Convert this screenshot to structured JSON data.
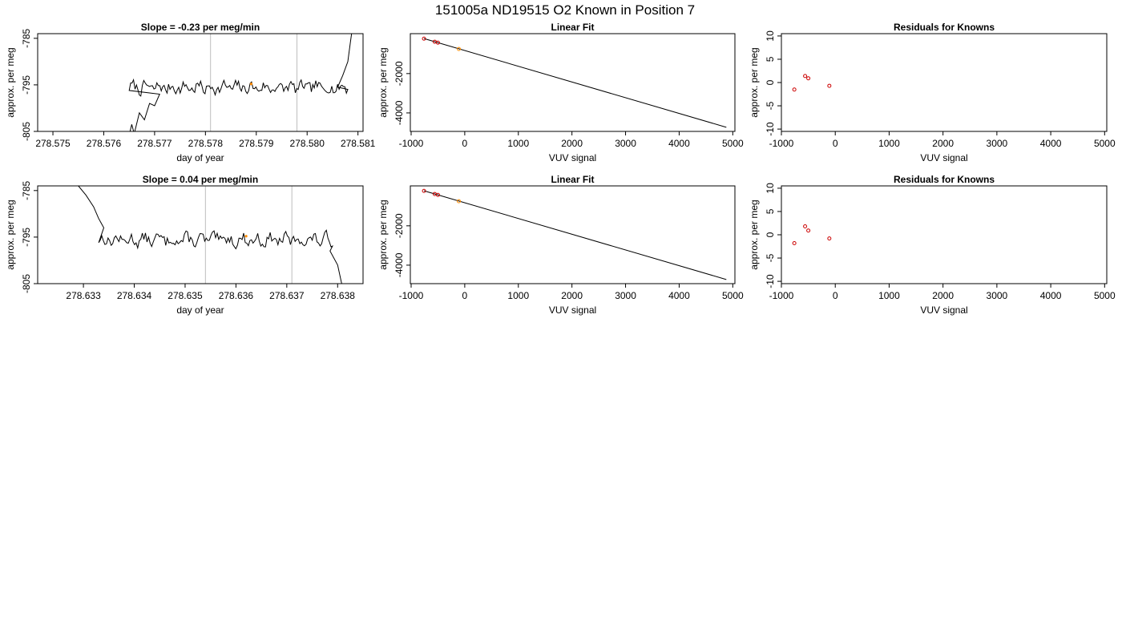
{
  "figure": {
    "title": "151005a     ND19515   O2 Known in Position  7"
  },
  "colors": {
    "trace": "#000000",
    "marker_orange": "#ff8c00",
    "marker_red": "#cc0000",
    "vline": "#bebebe",
    "fit_line": "#000000"
  },
  "chart_data": [
    {
      "type": "line",
      "title": "Slope =  -0.23  per meg/min",
      "xlabel": "day of year",
      "ylabel": "approx. per meg",
      "xlim": [
        278.5747,
        278.5811
      ],
      "ylim": [
        -805,
        -784
      ],
      "x_ticks": [
        278.575,
        278.576,
        278.577,
        278.578,
        278.579,
        278.58,
        278.581
      ],
      "x_tick_labels": [
        "278.575",
        "278.576",
        "278.577",
        "278.578",
        "278.579",
        "278.580",
        "278.581"
      ],
      "y_ticks": [
        -805,
        -795,
        -785
      ],
      "y_tick_labels": [
        "-805",
        "-795",
        "-785"
      ],
      "vlines": [
        278.5781,
        278.5798
      ],
      "trace": {
        "x_start": 278.5765,
        "x_end": 278.5808,
        "head": [
          [
            278.57645,
            -808
          ],
          [
            278.57655,
            -803.5
          ],
          [
            278.5766,
            -805.5
          ],
          [
            278.5767,
            -801
          ],
          [
            278.5768,
            -802.5
          ],
          [
            278.5769,
            -799
          ],
          [
            278.577,
            -799.5
          ],
          [
            278.5771,
            -797
          ]
        ],
        "tail": [
          [
            278.5806,
            -795.5
          ],
          [
            278.5807,
            -793
          ],
          [
            278.5808,
            -790
          ],
          [
            278.58085,
            -786
          ],
          [
            278.5809,
            -782
          ]
        ],
        "base": -795.6,
        "noise_amplitude": 1.8,
        "seed": 7,
        "steps": 150
      },
      "marker": {
        "x": 278.5789,
        "y": -794.8,
        "color": "orange"
      }
    },
    {
      "type": "line",
      "title": "Linear Fit",
      "xlabel": "VUV signal",
      "ylabel": "approx. per meg",
      "xlim": [
        -1015,
        5040
      ],
      "ylim": [
        -4940,
        30
      ],
      "x_ticks": [
        -1000,
        0,
        1000,
        2000,
        3000,
        4000,
        5000
      ],
      "x_tick_labels": [
        "-1000",
        "0",
        "1000",
        "2000",
        "3000",
        "4000",
        "5000"
      ],
      "y_ticks": [
        -4000,
        -2000
      ],
      "y_tick_labels": [
        "-4000",
        "-2000"
      ],
      "fit_line": [
        [
          -760,
          -220
        ],
        [
          4880,
          -4730
        ]
      ],
      "points": [
        {
          "x": -760,
          "y": -225,
          "color": "red"
        },
        {
          "x": -560,
          "y": -380,
          "color": "red"
        },
        {
          "x": -500,
          "y": -430,
          "color": "red"
        },
        {
          "x": -110,
          "y": -750,
          "color": "orange"
        }
      ]
    },
    {
      "type": "scatter",
      "title": "Residuals for Knowns",
      "xlabel": "VUV signal",
      "ylabel": "approx. per meg",
      "xlim": [
        -1000,
        5040
      ],
      "ylim": [
        -10.5,
        10.5
      ],
      "x_ticks": [
        -1000,
        0,
        1000,
        2000,
        3000,
        4000,
        5000
      ],
      "x_tick_labels": [
        "-1000",
        "0",
        "1000",
        "2000",
        "3000",
        "4000",
        "5000"
      ],
      "y_ticks": [
        -10,
        -5,
        0,
        5,
        10
      ],
      "y_tick_labels": [
        "-10",
        "-5",
        "0",
        "5",
        "10"
      ],
      "points": [
        {
          "x": -760,
          "y": -1.5,
          "color": "red"
        },
        {
          "x": -560,
          "y": 1.4,
          "color": "red"
        },
        {
          "x": -500,
          "y": 0.9,
          "color": "red"
        },
        {
          "x": -110,
          "y": -0.7,
          "color": "red"
        }
      ]
    },
    {
      "type": "line",
      "title": "Slope =  0.04  per meg/min",
      "xlabel": "day of year",
      "ylabel": "approx. per meg",
      "xlim": [
        278.6321,
        278.6385
      ],
      "ylim": [
        -805,
        -784
      ],
      "x_ticks": [
        278.633,
        278.634,
        278.635,
        278.636,
        278.637,
        278.638
      ],
      "x_tick_labels": [
        "278.633",
        "278.634",
        "278.635",
        "278.636",
        "278.637",
        "278.638"
      ],
      "y_ticks": [
        -805,
        -795,
        -785
      ],
      "y_tick_labels": [
        "-805",
        "-795",
        "-785"
      ],
      "vlines": [
        278.6354,
        278.6371
      ],
      "trace": {
        "x_start": 278.6333,
        "x_end": 278.6379,
        "head": [
          [
            278.6329,
            -784
          ],
          [
            278.63305,
            -786
          ],
          [
            278.6332,
            -788.5
          ],
          [
            278.6333,
            -791
          ],
          [
            278.6334,
            -793
          ]
        ],
        "tail": [
          [
            278.63785,
            -798
          ],
          [
            278.638,
            -801
          ],
          [
            278.6381,
            -806
          ]
        ],
        "base": -795.6,
        "noise_amplitude": 1.8,
        "seed": 13,
        "steps": 150
      },
      "marker": {
        "x": 278.6362,
        "y": -794.8,
        "color": "orange"
      }
    },
    {
      "type": "line",
      "title": "Linear Fit",
      "xlabel": "VUV signal",
      "ylabel": "approx. per meg",
      "xlim": [
        -1015,
        5040
      ],
      "ylim": [
        -4940,
        30
      ],
      "x_ticks": [
        -1000,
        0,
        1000,
        2000,
        3000,
        4000,
        5000
      ],
      "x_tick_labels": [
        "-1000",
        "0",
        "1000",
        "2000",
        "3000",
        "4000",
        "5000"
      ],
      "y_ticks": [
        -4000,
        -2000
      ],
      "y_tick_labels": [
        "-4000",
        "-2000"
      ],
      "fit_line": [
        [
          -760,
          -220
        ],
        [
          4880,
          -4730
        ]
      ],
      "points": [
        {
          "x": -760,
          "y": -225,
          "color": "red"
        },
        {
          "x": -560,
          "y": -380,
          "color": "red"
        },
        {
          "x": -500,
          "y": -430,
          "color": "red"
        },
        {
          "x": -110,
          "y": -750,
          "color": "orange"
        }
      ]
    },
    {
      "type": "scatter",
      "title": "Residuals for Knowns",
      "xlabel": "VUV signal",
      "ylabel": "approx. per meg",
      "xlim": [
        -1000,
        5040
      ],
      "ylim": [
        -10.5,
        10.5
      ],
      "x_ticks": [
        -1000,
        0,
        1000,
        2000,
        3000,
        4000,
        5000
      ],
      "x_tick_labels": [
        "-1000",
        "0",
        "1000",
        "2000",
        "3000",
        "4000",
        "5000"
      ],
      "y_ticks": [
        -10,
        -5,
        0,
        5,
        10
      ],
      "y_tick_labels": [
        "-10",
        "-5",
        "0",
        "5",
        "10"
      ],
      "points": [
        {
          "x": -760,
          "y": -1.8,
          "color": "red"
        },
        {
          "x": -560,
          "y": 1.8,
          "color": "red"
        },
        {
          "x": -500,
          "y": 0.9,
          "color": "red"
        },
        {
          "x": -110,
          "y": -0.8,
          "color": "red"
        }
      ]
    }
  ]
}
